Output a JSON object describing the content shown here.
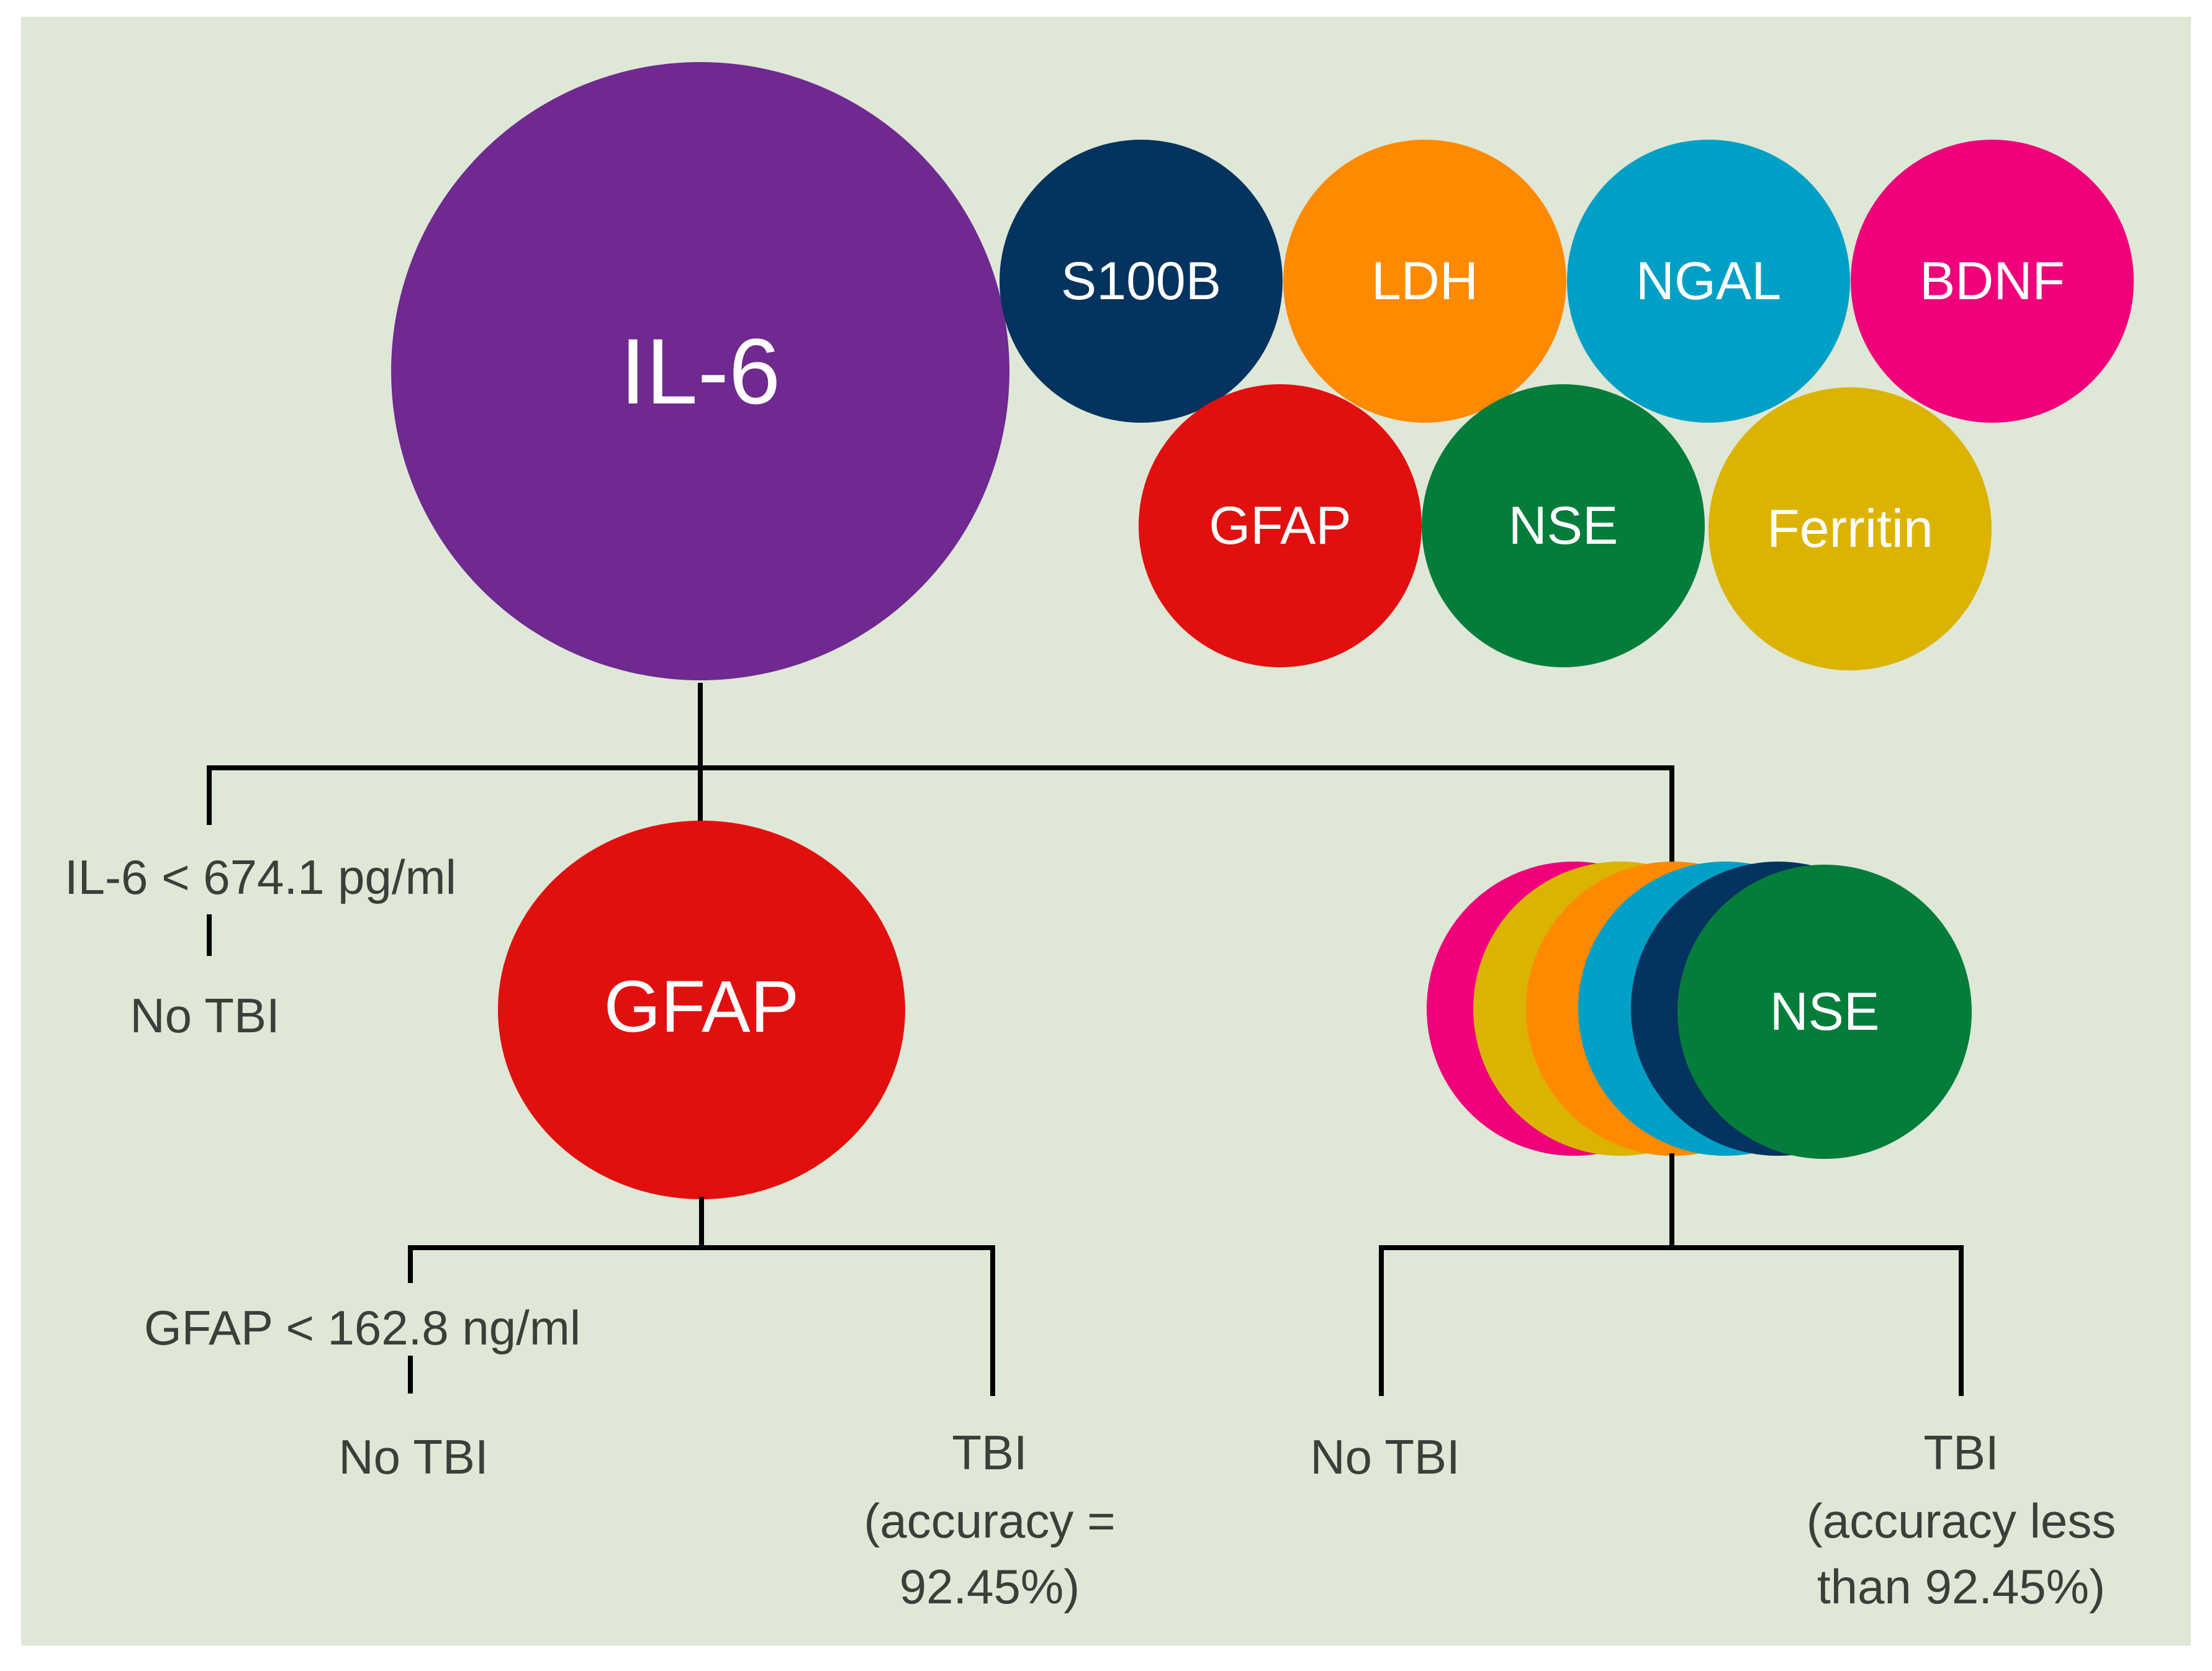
{
  "colors": {
    "background": "#dfe7d6",
    "il6": "#6f2991",
    "s100b": "#04335f",
    "ldh": "#ff8a00",
    "ngal": "#00a0c6",
    "bdnf": "#ef007a",
    "gfap": "#e20f0f",
    "nse": "#047d3b",
    "ferritin": "#dcb300"
  },
  "biomarkers": {
    "il6": "IL-6",
    "s100b": "S100B",
    "ldh": "LDH",
    "ngal": "NGAL",
    "bdnf": "BDNF",
    "gfap": "GFAP",
    "nse": "NSE",
    "ferritin": "Ferritin"
  },
  "tree": {
    "root_label": "IL-6",
    "root_condition": "IL-6 < 674.1 pg/ml",
    "root_left_outcome": "No TBI",
    "gfap_node_label": "GFAP",
    "gfap_condition": "GFAP < 162.8 ng/ml",
    "gfap_left_outcome": "No TBI",
    "gfap_right_outcome": {
      "line1": "TBI",
      "line2": "(accuracy =",
      "line3": "92.45%)"
    },
    "nse_node_label": "NSE",
    "nse_left_outcome": "No TBI",
    "nse_right_outcome": {
      "line1": "TBI",
      "line2": "(accuracy less",
      "line3": "than 92.45%)"
    }
  }
}
